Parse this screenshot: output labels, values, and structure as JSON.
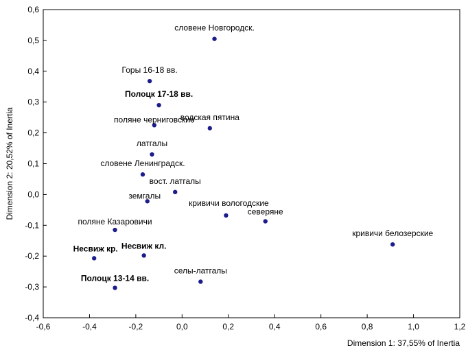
{
  "chart_data": {
    "type": "scatter",
    "xlabel": "Dimension 1: 37,55% of Inertia",
    "ylabel": "Dimension 2: 20,52% of Inertia",
    "xlim": [
      -0.6,
      1.2
    ],
    "ylim": [
      -0.4,
      0.6
    ],
    "xticks": [
      -0.6,
      -0.4,
      -0.2,
      0.0,
      0.2,
      0.4,
      0.6,
      0.8,
      1.0,
      1.2
    ],
    "yticks": [
      -0.4,
      -0.3,
      -0.2,
      -0.1,
      0.0,
      0.1,
      0.2,
      0.3,
      0.4,
      0.5,
      0.6
    ],
    "xtick_labels": [
      "-0,6",
      "-0,4",
      "-0,2",
      "0,0",
      "0,2",
      "0,4",
      "0,6",
      "0,8",
      "1,0",
      "1,2"
    ],
    "ytick_labels": [
      "-0,4",
      "-0,3",
      "-0,2",
      "-0,1",
      "0,0",
      "0,1",
      "0,2",
      "0,3",
      "0,4",
      "0,5",
      "0,6"
    ],
    "grid": false,
    "marker_color": "#1c1c8c",
    "points": [
      {
        "label": "словене Новгородск.",
        "x": 0.14,
        "y": 0.505,
        "color": "#000000",
        "bold": false
      },
      {
        "label": "Горы 16-18 вв.",
        "x": -0.14,
        "y": 0.368,
        "color": "#000000",
        "bold": false
      },
      {
        "label": "Полоцк 17-18 вв.",
        "x": -0.1,
        "y": 0.29,
        "color": "#8b1a1a",
        "bold": true
      },
      {
        "label": "водская пятина",
        "x": 0.12,
        "y": 0.215,
        "color": "#000000",
        "bold": false
      },
      {
        "label": "поляне черниговские",
        "x": -0.12,
        "y": 0.225,
        "color": "#000000",
        "bold": false
      },
      {
        "label": "латгалы",
        "x": -0.13,
        "y": 0.13,
        "color": "#000000",
        "bold": false
      },
      {
        "label": "словене Ленинградск.",
        "x": -0.17,
        "y": 0.065,
        "color": "#000000",
        "bold": false
      },
      {
        "label": "вост. латгалы",
        "x": -0.03,
        "y": 0.008,
        "color": "#000000",
        "bold": false
      },
      {
        "label": "земгалы",
        "x": -0.15,
        "y": -0.022,
        "color": "#000000",
        "bold": false
      },
      {
        "label": "кривичи вологодские",
        "x": 0.19,
        "y": -0.068,
        "color": "#000000",
        "bold": false
      },
      {
        "label": "северяне",
        "x": 0.36,
        "y": -0.087,
        "color": "#000000",
        "bold": false
      },
      {
        "label": "поляне Казаровичи",
        "x": -0.29,
        "y": -0.115,
        "color": "#000000",
        "bold": false
      },
      {
        "label": "кривичи белозерские",
        "x": 0.91,
        "y": -0.162,
        "color": "#000000",
        "bold": false
      },
      {
        "label": "Несвиж кл.",
        "x": -0.165,
        "y": -0.198,
        "color": "#1a4d4d",
        "bold": true
      },
      {
        "label": "Несвиж кр.",
        "x": -0.38,
        "y": -0.207,
        "color": "#1a4d4d",
        "bold": true
      },
      {
        "label": "селы-латгалы",
        "x": 0.08,
        "y": -0.283,
        "color": "#000000",
        "bold": false
      },
      {
        "label": "Полоцк 13-14 вв.",
        "x": -0.29,
        "y": -0.303,
        "color": "#8b1a1a",
        "bold": true
      }
    ]
  }
}
